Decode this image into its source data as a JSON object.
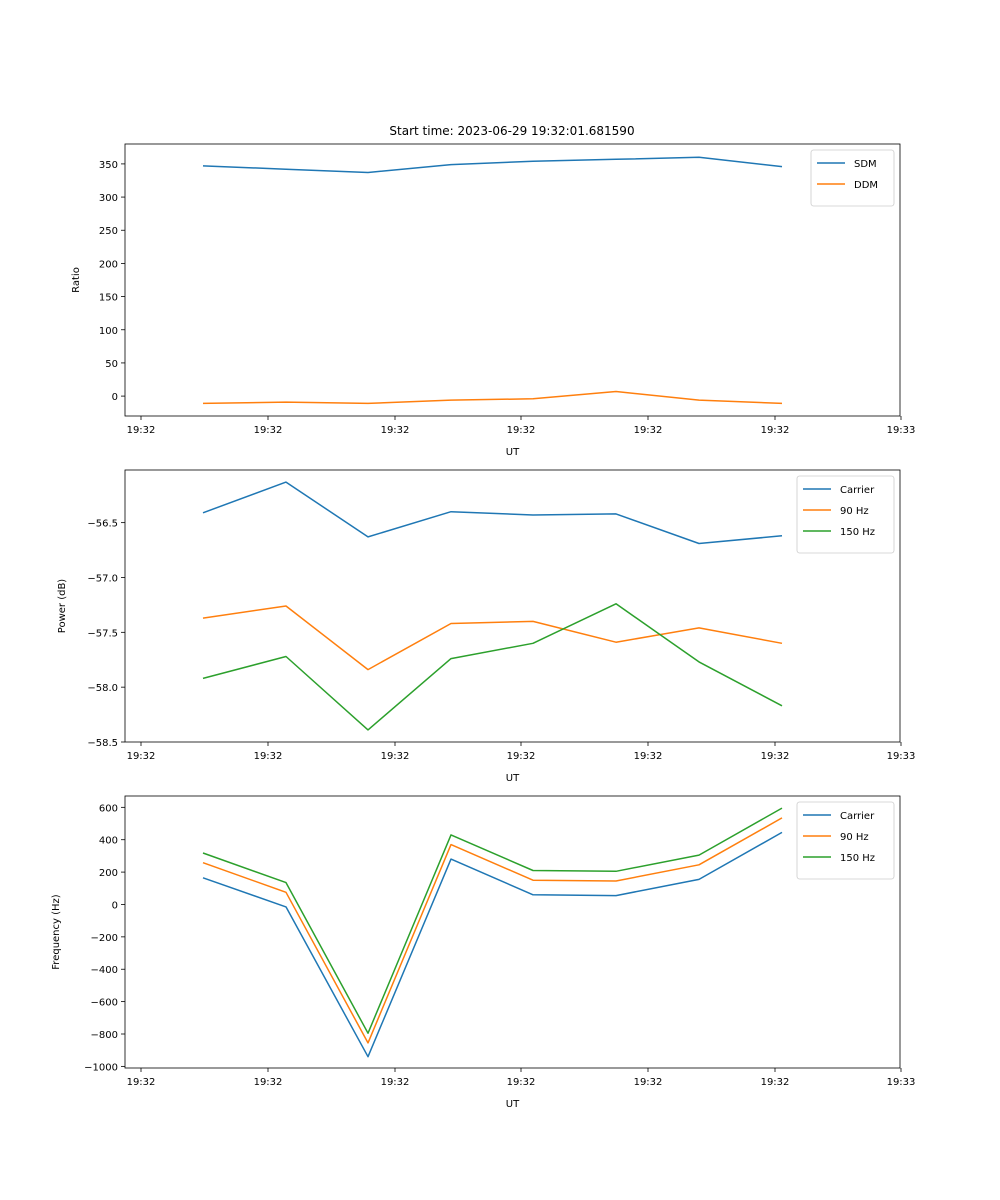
{
  "title": "Start time: 2023-06-29 19:32:01.681590",
  "chart_data": [
    {
      "type": "line",
      "title": "Start time: 2023-06-29 19:32:01.681590",
      "xlabel": "UT",
      "ylabel": "Ratio",
      "x_tick_labels": [
        "19:32",
        "19:32",
        "19:32",
        "19:32",
        "19:32",
        "19:32",
        "19:33"
      ],
      "y_ticks": [
        0,
        50,
        100,
        150,
        200,
        250,
        300,
        350
      ],
      "ylim": [
        -30,
        380
      ],
      "legend_position": "top-right",
      "grid": false,
      "series": [
        {
          "name": "SDM",
          "color": "#1f77b4",
          "values": [
            347,
            342,
            337,
            349,
            354,
            357,
            360,
            346
          ]
        },
        {
          "name": "DDM",
          "color": "#ff7f0e",
          "values": [
            -11,
            -9,
            -11,
            -6,
            -4,
            7,
            -6,
            -11
          ]
        }
      ]
    },
    {
      "type": "line",
      "title": "",
      "xlabel": "UT",
      "ylabel": "Power (dB)",
      "x_tick_labels": [
        "19:32",
        "19:32",
        "19:32",
        "19:32",
        "19:32",
        "19:32",
        "19:33"
      ],
      "y_ticks": [
        -58.5,
        -58.0,
        -57.5,
        -57.0,
        -56.5
      ],
      "y_tick_labels": [
        "−58.5",
        "−58.0",
        "−57.5",
        "−57.0",
        "−56.5"
      ],
      "ylim": [
        -58.5,
        -56.02
      ],
      "legend_position": "top-right",
      "grid": false,
      "series": [
        {
          "name": "Carrier",
          "color": "#1f77b4",
          "values": [
            -56.41,
            -56.13,
            -56.63,
            -56.4,
            -56.43,
            -56.42,
            -56.69,
            -56.62
          ]
        },
        {
          "name": "90 Hz",
          "color": "#ff7f0e",
          "values": [
            -57.37,
            -57.26,
            -57.84,
            -57.42,
            -57.4,
            -57.59,
            -57.46,
            -57.6
          ]
        },
        {
          "name": "150 Hz",
          "color": "#2ca02c",
          "values": [
            -57.92,
            -57.72,
            -58.39,
            -57.74,
            -57.6,
            -57.24,
            -57.77,
            -58.17
          ]
        }
      ]
    },
    {
      "type": "line",
      "title": "",
      "xlabel": "UT",
      "ylabel": "Frequency (Hz)",
      "x_tick_labels": [
        "19:32",
        "19:32",
        "19:32",
        "19:32",
        "19:32",
        "19:32",
        "19:33"
      ],
      "y_ticks": [
        -1000,
        -800,
        -600,
        -400,
        -200,
        0,
        200,
        400,
        600
      ],
      "y_tick_labels": [
        "−1000",
        "−800",
        "−600",
        "−400",
        "−200",
        "0",
        "200",
        "400",
        "600"
      ],
      "ylim": [
        -1010,
        670
      ],
      "legend_position": "top-right",
      "grid": false,
      "series": [
        {
          "name": "Carrier",
          "color": "#1f77b4",
          "values": [
            165,
            -15,
            -940,
            280,
            60,
            55,
            155,
            445
          ]
        },
        {
          "name": "90 Hz",
          "color": "#ff7f0e",
          "values": [
            258,
            75,
            -855,
            370,
            150,
            145,
            245,
            535
          ]
        },
        {
          "name": "150 Hz",
          "color": "#2ca02c",
          "values": [
            318,
            135,
            -795,
            430,
            210,
            205,
            305,
            595
          ]
        }
      ]
    }
  ]
}
